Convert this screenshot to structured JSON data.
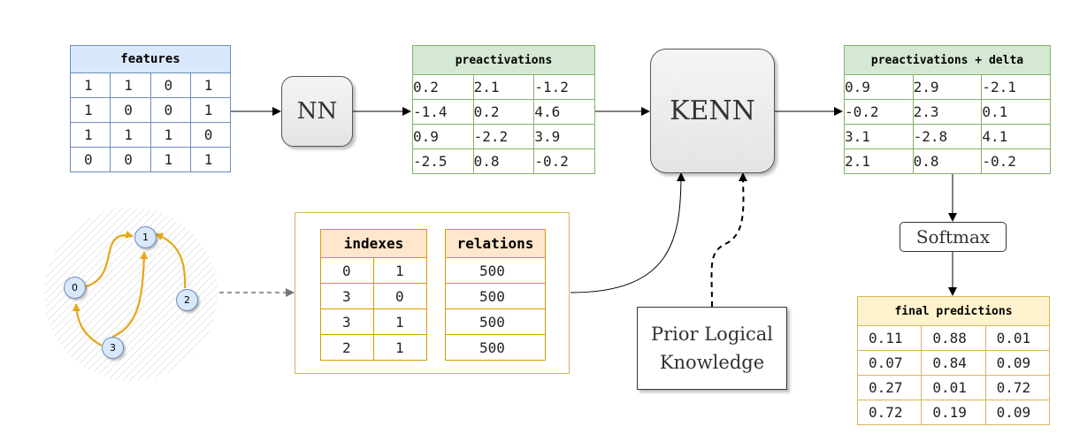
{
  "features": {
    "title": "features",
    "rows": [
      [
        "1",
        "1",
        "0",
        "1"
      ],
      [
        "1",
        "0",
        "0",
        "1"
      ],
      [
        "1",
        "1",
        "1",
        "0"
      ],
      [
        "0",
        "0",
        "1",
        "1"
      ]
    ]
  },
  "nn_label": "NN",
  "preactivations": {
    "title": "preactivations",
    "rows": [
      [
        "0.2",
        "2.1",
        "-1.2"
      ],
      [
        "-1.4",
        "0.2",
        "4.6"
      ],
      [
        "0.9",
        "-2.2",
        "3.9"
      ],
      [
        "-2.5",
        "0.8",
        "-0.2"
      ]
    ]
  },
  "kenn_label": "KENN",
  "preactivations_delta": {
    "title": "preactivations + delta",
    "rows": [
      [
        "0.9",
        "2.9",
        "-2.1"
      ],
      [
        "-0.2",
        "2.3",
        "0.1"
      ],
      [
        "3.1",
        "-2.8",
        "4.1"
      ],
      [
        "2.1",
        "0.8",
        "-0.2"
      ]
    ]
  },
  "softmax_label": "Softmax",
  "final_predictions": {
    "title": "final predictions",
    "rows": [
      [
        "0.11",
        "0.88",
        "0.01"
      ],
      [
        "0.07",
        "0.84",
        "0.09"
      ],
      [
        "0.27",
        "0.01",
        "0.72"
      ],
      [
        "0.72",
        "0.19",
        "0.09"
      ]
    ]
  },
  "indexes": {
    "title": "indexes",
    "rows": [
      [
        "0",
        "1"
      ],
      [
        "3",
        "0"
      ],
      [
        "3",
        "1"
      ],
      [
        "2",
        "1"
      ]
    ]
  },
  "relations": {
    "title": "relations",
    "rows": [
      "500",
      "500",
      "500",
      "500"
    ]
  },
  "prior_knowledge": {
    "line1": "Prior Logical",
    "line2": "Knowledge"
  },
  "graph_nodes": [
    "0",
    "1",
    "2",
    "3"
  ],
  "colors": {
    "edge": "#e6a817",
    "node_fill": "#dae8fc",
    "node_stroke": "#6c8ebf"
  }
}
